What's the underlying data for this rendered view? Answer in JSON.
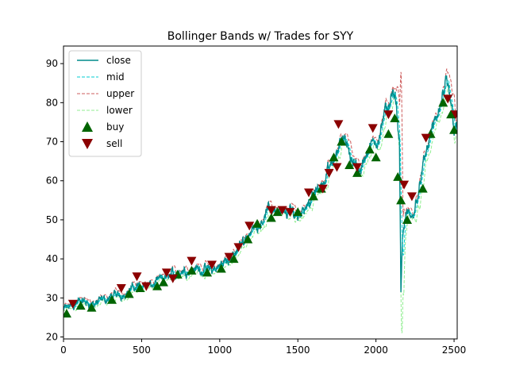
{
  "chart_data": {
    "type": "line",
    "title": "Bollinger Bands w/ Trades for SYY",
    "xlabel": "",
    "ylabel": "",
    "xlim": [
      0,
      2520
    ],
    "ylim": [
      19.5,
      94.5
    ],
    "xticks": [
      0,
      500,
      1000,
      1500,
      2000,
      2500
    ],
    "yticks": [
      20,
      30,
      40,
      50,
      60,
      70,
      80,
      90
    ],
    "legend": {
      "placement": "top-left",
      "entries": [
        "close",
        "mid",
        "upper",
        "lower",
        "buy",
        "sell"
      ]
    },
    "colors": {
      "close": "#008b8b",
      "mid": "#00ced1",
      "upper": "#cd5c5c",
      "lower": "#90ee90",
      "buy": "#006400",
      "sell": "#8b0000"
    },
    "close_anchors": [
      [
        0,
        27
      ],
      [
        100,
        29
      ],
      [
        200,
        28.5
      ],
      [
        300,
        30
      ],
      [
        400,
        31.5
      ],
      [
        500,
        33.5
      ],
      [
        560,
        33
      ],
      [
        650,
        35
      ],
      [
        750,
        37
      ],
      [
        850,
        37.5
      ],
      [
        950,
        37
      ],
      [
        1000,
        38
      ],
      [
        1050,
        40
      ],
      [
        1100,
        41
      ],
      [
        1150,
        45
      ],
      [
        1200,
        47
      ],
      [
        1250,
        49
      ],
      [
        1300,
        52
      ],
      [
        1350,
        53
      ],
      [
        1400,
        51
      ],
      [
        1450,
        52
      ],
      [
        1500,
        51
      ],
      [
        1550,
        54
      ],
      [
        1600,
        56
      ],
      [
        1650,
        59
      ],
      [
        1700,
        63
      ],
      [
        1750,
        67
      ],
      [
        1780,
        73
      ],
      [
        1800,
        70
      ],
      [
        1850,
        64
      ],
      [
        1900,
        63
      ],
      [
        1950,
        68
      ],
      [
        2000,
        70
      ],
      [
        2050,
        76
      ],
      [
        2100,
        82
      ],
      [
        2130,
        79
      ],
      [
        2150,
        70
      ],
      [
        2160,
        32
      ],
      [
        2170,
        46
      ],
      [
        2200,
        52
      ],
      [
        2230,
        50
      ],
      [
        2260,
        55
      ],
      [
        2300,
        63
      ],
      [
        2350,
        72
      ],
      [
        2400,
        77
      ],
      [
        2450,
        84
      ],
      [
        2480,
        80
      ],
      [
        2500,
        74
      ],
      [
        2520,
        73
      ]
    ],
    "buy_markers": [
      [
        20,
        26
      ],
      [
        110,
        28
      ],
      [
        180,
        27.5
      ],
      [
        310,
        29.5
      ],
      [
        420,
        31
      ],
      [
        490,
        32.5
      ],
      [
        600,
        33
      ],
      [
        640,
        34
      ],
      [
        730,
        36
      ],
      [
        820,
        37
      ],
      [
        920,
        36.5
      ],
      [
        1010,
        37.5
      ],
      [
        1090,
        40
      ],
      [
        1180,
        45
      ],
      [
        1240,
        49
      ],
      [
        1330,
        50.5
      ],
      [
        1370,
        52
      ],
      [
        1500,
        52
      ],
      [
        1600,
        56
      ],
      [
        1650,
        58
      ],
      [
        1730,
        66
      ],
      [
        1780,
        70
      ],
      [
        1830,
        64
      ],
      [
        1880,
        62
      ],
      [
        1960,
        68
      ],
      [
        2000,
        66
      ],
      [
        2080,
        72
      ],
      [
        2120,
        76
      ],
      [
        2140,
        61
      ],
      [
        2160,
        55
      ],
      [
        2200,
        50
      ],
      [
        2300,
        58
      ],
      [
        2350,
        72
      ],
      [
        2430,
        80
      ],
      [
        2480,
        77
      ],
      [
        2500,
        73
      ]
    ],
    "sell_markers": [
      [
        60,
        28.5
      ],
      [
        370,
        32.5
      ],
      [
        470,
        35.5
      ],
      [
        530,
        33
      ],
      [
        660,
        36.5
      ],
      [
        700,
        35
      ],
      [
        820,
        39.5
      ],
      [
        950,
        38.5
      ],
      [
        1060,
        40.5
      ],
      [
        1120,
        43
      ],
      [
        1190,
        48.5
      ],
      [
        1330,
        52.5
      ],
      [
        1400,
        52.5
      ],
      [
        1450,
        52
      ],
      [
        1570,
        57
      ],
      [
        1660,
        58
      ],
      [
        1700,
        62
      ],
      [
        1750,
        63.5
      ],
      [
        1760,
        74.5
      ],
      [
        1880,
        63.5
      ],
      [
        1980,
        73.5
      ],
      [
        2080,
        77
      ],
      [
        2180,
        59
      ],
      [
        2230,
        56
      ],
      [
        2320,
        71
      ],
      [
        2460,
        81
      ],
      [
        2510,
        77
      ]
    ]
  }
}
